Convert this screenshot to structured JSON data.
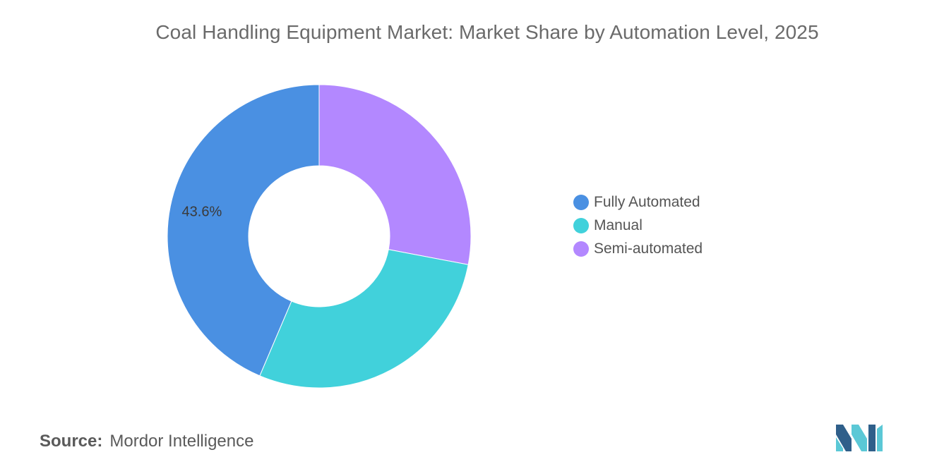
{
  "chart_data": {
    "type": "pie",
    "title": "Coal Handling Equipment Market: Market Share by Automation Level, 2025",
    "series": [
      {
        "name": "Fully Automated",
        "value": 43.6,
        "color": "#4a90e2",
        "label": "43.6%"
      },
      {
        "name": "Manual",
        "value": 28.4,
        "color": "#41d1db",
        "label": ""
      },
      {
        "name": "Semi-automated",
        "value": 28.0,
        "color": "#b388ff",
        "label": ""
      }
    ],
    "donut": true,
    "legend_position": "right"
  },
  "source": {
    "label": "Source:",
    "text": "Mordor Intelligence"
  },
  "logo": {
    "icon": "mordor-intelligence-logo",
    "colors": [
      "#2f5f8a",
      "#5bc8d6"
    ]
  }
}
